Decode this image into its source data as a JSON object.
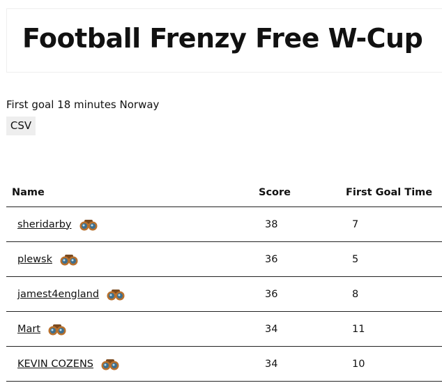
{
  "header": {
    "title": "Football Frenzy Free W-Cup"
  },
  "info": "First goal 18 minutes Norway",
  "button": "CSV",
  "table": {
    "columns": [
      "Name",
      "Score",
      "First Goal Time"
    ],
    "rows": [
      [
        "sheridarby",
        38,
        7
      ],
      [
        "plewsk",
        36,
        5
      ],
      [
        "jamest4england",
        36,
        8
      ],
      [
        "Mart",
        34,
        11
      ],
      [
        "KEVIN COZENS",
        34,
        10
      ]
    ]
  }
}
